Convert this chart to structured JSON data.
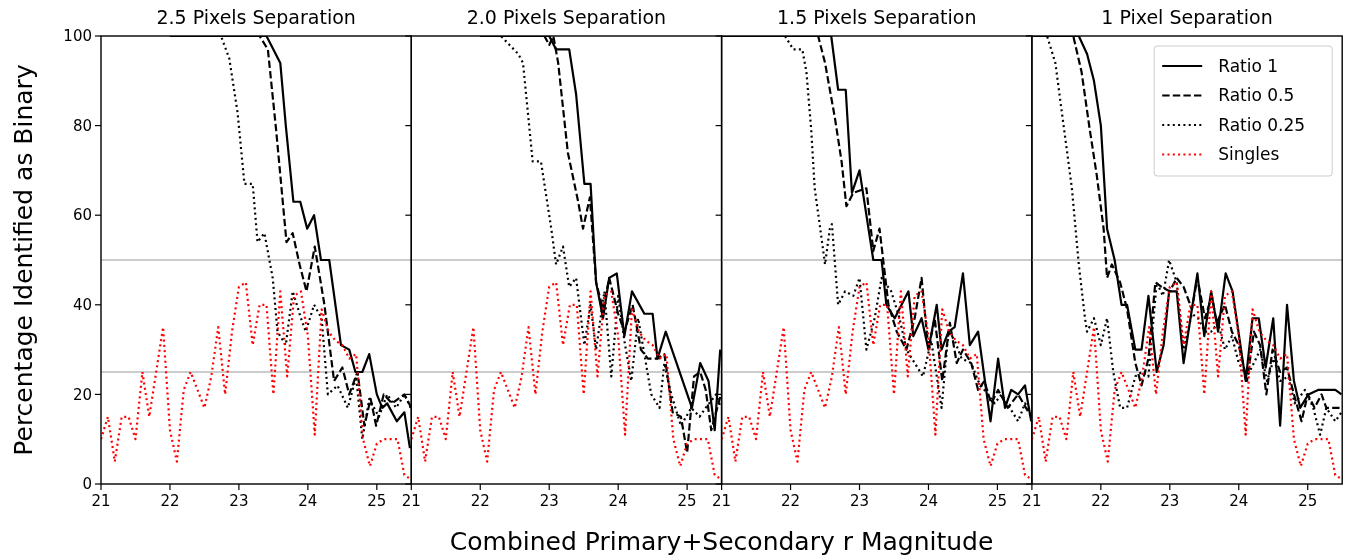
{
  "chart_data": [
    {
      "type": "line",
      "title": "2.5 Pixels Separation",
      "xlabel": "Combined Primary+Secondary r Magnitude",
      "ylabel": "Percentage Identified as Binary",
      "xlim": [
        21,
        25.5
      ],
      "xticks": [
        21,
        22,
        23,
        24,
        25
      ],
      "ylim": [
        0,
        100
      ],
      "yticks": [
        0,
        20,
        40,
        60,
        80,
        100
      ],
      "ref_lines": [
        {
          "axis": "y",
          "value": 50,
          "color": "#cccccc"
        },
        {
          "axis": "y",
          "value": 25,
          "color": "#cccccc"
        }
      ],
      "series": [
        {
          "color": "#000000",
          "line_style": "solid",
          "x": [
            22,
            23.4,
            23.6,
            23.68,
            23.79,
            23.89,
            23.99,
            24.09,
            24.19,
            24.31,
            24.48,
            24.6,
            24.69,
            24.79,
            24.89,
            25.0,
            25.08,
            25.15,
            25.29,
            25.4,
            25.48
          ],
          "values": [
            100,
            100,
            94,
            80,
            63,
            63,
            57,
            60,
            50,
            50,
            31,
            30,
            25,
            25,
            29,
            20,
            17,
            18,
            14,
            16,
            8
          ]
        },
        {
          "color": "#000000",
          "line_style": "dashed",
          "x": [
            22,
            23.3,
            23.42,
            23.54,
            23.69,
            23.78,
            23.88,
            23.98,
            24.1,
            24.24,
            24.38,
            24.5,
            24.6,
            24.72,
            24.82,
            24.91,
            24.99,
            25.1,
            25.22,
            25.4,
            25.5
          ],
          "values": [
            100,
            100,
            97,
            79,
            54,
            56,
            49,
            43,
            53,
            40,
            23,
            26,
            20,
            25,
            13,
            19,
            13,
            20,
            18,
            20,
            17
          ]
        },
        {
          "color": "#000000",
          "line_style": "dotted",
          "x": [
            22,
            22.74,
            22.86,
            22.98,
            23.08,
            23.2,
            23.27,
            23.37,
            23.49,
            23.56,
            23.68,
            23.78,
            23.9,
            23.97,
            24.09,
            24.2,
            24.29,
            24.43,
            24.58,
            24.7,
            24.79,
            24.89,
            25.03,
            25.15,
            25.28,
            25.4,
            25.49
          ],
          "values": [
            100,
            100,
            95,
            83,
            67,
            67,
            54,
            56,
            46,
            34,
            31,
            43,
            37,
            34,
            40,
            37,
            20,
            22,
            17,
            24,
            10,
            19,
            15,
            20,
            17,
            20,
            17
          ]
        },
        {
          "color": "#ff0000",
          "line_style": "dotted",
          "x": [
            21,
            21.1,
            21.2,
            21.3,
            21.4,
            21.5,
            21.6,
            21.7,
            21.8,
            21.9,
            22,
            22.1,
            22.2,
            22.3,
            22.4,
            22.5,
            22.6,
            22.7,
            22.8,
            22.9,
            23,
            23.1,
            23.2,
            23.3,
            23.4,
            23.5,
            23.6,
            23.7,
            23.8,
            23.9,
            24,
            24.1,
            24.2,
            24.3,
            24.4,
            24.5,
            24.6,
            24.7,
            24.8,
            24.9,
            25,
            25.1,
            25.2,
            25.3,
            25.4,
            25.5
          ],
          "values": [
            10,
            15,
            5,
            15,
            15,
            10,
            25,
            15,
            25,
            35,
            12,
            5,
            21,
            25,
            21,
            17,
            24,
            35,
            20,
            34,
            44,
            45,
            31,
            40,
            40,
            20,
            43,
            24,
            42,
            43,
            33,
            11,
            39,
            34,
            32,
            31,
            28,
            29,
            10,
            4,
            9,
            10,
            10,
            10,
            2,
            1
          ]
        }
      ]
    },
    {
      "type": "line",
      "title": "2.0 Pixels Separation",
      "xlim": [
        21,
        25.5
      ],
      "xticks": [
        21,
        22,
        23,
        24,
        25
      ],
      "ylim": [
        0,
        100
      ],
      "yticks": [
        0,
        20,
        40,
        60,
        80,
        100
      ],
      "tick_labels": "x",
      "ref_lines": [
        {
          "axis": "y",
          "value": 50,
          "color": "#cccccc"
        },
        {
          "axis": "y",
          "value": 25,
          "color": "#cccccc"
        }
      ],
      "series": [
        {
          "color": "#000000",
          "line_style": "solid",
          "x": [
            22,
            23.0,
            23.1,
            23.29,
            23.39,
            23.51,
            23.6,
            23.68,
            23.78,
            23.87,
            23.98,
            24.09,
            24.2,
            24.38,
            24.5,
            24.57,
            24.69,
            25.07,
            25.19,
            25.31,
            25.4,
            25.48
          ],
          "values": [
            100,
            100,
            97,
            97,
            87,
            67,
            67,
            45,
            37,
            46,
            47,
            33,
            43,
            38,
            38,
            28,
            34,
            17,
            27,
            23,
            12,
            30
          ]
        },
        {
          "color": "#000000",
          "line_style": "dashed",
          "x": [
            22,
            22.93,
            23.0,
            23.06,
            23.13,
            23.27,
            23.42,
            23.49,
            23.59,
            23.68,
            23.78,
            23.87,
            24.0,
            24.09,
            24.21,
            24.33,
            24.43,
            24.57,
            24.67,
            24.79,
            24.91,
            25.0,
            25.1,
            25.19,
            25.27,
            25.35,
            25.49
          ],
          "values": [
            100,
            100,
            98,
            100,
            94,
            74,
            63,
            57,
            64,
            45,
            39,
            46,
            38,
            34,
            40,
            30,
            28,
            28,
            29,
            16,
            15,
            7,
            24,
            25,
            21,
            12,
            20
          ]
        },
        {
          "color": "#000000",
          "line_style": "dotted",
          "x": [
            22,
            22.3,
            22.55,
            22.62,
            22.76,
            22.88,
            23.03,
            23.1,
            23.2,
            23.29,
            23.39,
            23.51,
            23.6,
            23.68,
            23.8,
            23.9,
            24.0,
            24.09,
            24.19,
            24.29,
            24.48,
            24.6,
            24.67,
            24.77,
            24.91,
            25.06,
            25.18,
            25.27,
            25.42,
            25.49
          ],
          "values": [
            100,
            100,
            96,
            94,
            72,
            72,
            57,
            49,
            53,
            44,
            46,
            31,
            40,
            30,
            43,
            24,
            42,
            32,
            23,
            37,
            20,
            17,
            27,
            20,
            13,
            17,
            15,
            17,
            20,
            17
          ]
        },
        {
          "color": "#ff0000",
          "line_style": "dotted",
          "x": [
            21,
            21.1,
            21.2,
            21.3,
            21.4,
            21.5,
            21.6,
            21.7,
            21.8,
            21.9,
            22,
            22.1,
            22.2,
            22.3,
            22.4,
            22.5,
            22.6,
            22.7,
            22.8,
            22.9,
            23,
            23.1,
            23.2,
            23.3,
            23.4,
            23.5,
            23.6,
            23.7,
            23.8,
            23.9,
            24,
            24.1,
            24.2,
            24.3,
            24.4,
            24.5,
            24.6,
            24.7,
            24.8,
            24.9,
            25,
            25.1,
            25.2,
            25.3,
            25.4,
            25.5
          ],
          "values": [
            10,
            15,
            5,
            15,
            15,
            10,
            25,
            15,
            25,
            35,
            12,
            5,
            21,
            25,
            21,
            17,
            24,
            35,
            20,
            34,
            44,
            45,
            31,
            40,
            40,
            20,
            43,
            24,
            42,
            43,
            33,
            11,
            39,
            34,
            32,
            31,
            28,
            29,
            10,
            4,
            9,
            10,
            10,
            10,
            2,
            1
          ]
        }
      ]
    },
    {
      "type": "line",
      "title": "1.5 Pixels Separation",
      "xlim": [
        21,
        25.5
      ],
      "xticks": [
        21,
        22,
        23,
        24,
        25
      ],
      "ylim": [
        0,
        100
      ],
      "yticks": [
        0,
        20,
        40,
        60,
        80,
        100
      ],
      "tick_labels": "x",
      "ref_lines": [
        {
          "axis": "y",
          "value": 50,
          "color": "#cccccc"
        },
        {
          "axis": "y",
          "value": 25,
          "color": "#cccccc"
        }
      ],
      "series": [
        {
          "color": "#000000",
          "line_style": "solid",
          "x": [
            21,
            22.59,
            22.69,
            22.8,
            22.89,
            23.0,
            23.2,
            23.32,
            23.39,
            23.51,
            23.71,
            23.78,
            23.9,
            24.0,
            24.12,
            24.19,
            24.29,
            24.38,
            24.5,
            24.6,
            24.72,
            24.81,
            24.9,
            25.01,
            25.11,
            25.2,
            25.3,
            25.4,
            25.49
          ],
          "values": [
            100,
            100,
            88,
            88,
            65,
            70,
            50,
            50,
            40,
            37,
            43,
            33,
            37,
            30,
            40,
            30,
            34,
            35,
            47,
            31,
            34,
            24,
            14,
            28,
            17,
            21,
            20,
            22,
            14
          ]
        },
        {
          "color": "#000000",
          "line_style": "dashed",
          "x": [
            21,
            22.4,
            22.5,
            22.64,
            22.74,
            22.81,
            22.91,
            23.1,
            23.2,
            23.29,
            23.42,
            23.54,
            23.68,
            23.8,
            23.9,
            24.0,
            24.09,
            24.2,
            24.31,
            24.41,
            24.5,
            24.62,
            24.72,
            24.81,
            24.91,
            25.01,
            25.15,
            25.3,
            25.49
          ],
          "values": [
            100,
            100,
            94,
            82,
            72,
            62,
            65,
            66,
            52,
            57,
            40,
            34,
            30,
            37,
            46,
            30,
            37,
            23,
            36,
            27,
            30,
            27,
            21,
            23,
            18,
            21,
            17,
            20,
            15
          ]
        },
        {
          "color": "#000000",
          "line_style": "dotted",
          "x": [
            21,
            21.92,
            22.04,
            22.17,
            22.23,
            22.3,
            22.35,
            22.43,
            22.5,
            22.57,
            22.6,
            22.69,
            22.79,
            22.91,
            23.0,
            23.1,
            23.22,
            23.32,
            23.46,
            23.58,
            23.68,
            23.8,
            23.92,
            24.04,
            24.19,
            24.29,
            24.38,
            24.48,
            24.62,
            24.72,
            24.81,
            24.96,
            25.06,
            25.18,
            25.3,
            25.4,
            25.49
          ],
          "values": [
            100,
            100,
            97,
            97,
            92,
            79,
            66,
            57,
            49,
            57,
            58,
            40,
            43,
            42,
            46,
            30,
            37,
            46,
            43,
            37,
            30,
            27,
            24,
            32,
            17,
            34,
            32,
            28,
            27,
            23,
            21,
            18,
            20,
            17,
            14,
            18,
            16
          ]
        },
        {
          "color": "#ff0000",
          "line_style": "dotted",
          "x": [
            21,
            21.1,
            21.2,
            21.3,
            21.4,
            21.5,
            21.6,
            21.7,
            21.8,
            21.9,
            22,
            22.1,
            22.2,
            22.3,
            22.4,
            22.5,
            22.6,
            22.7,
            22.8,
            22.9,
            23,
            23.1,
            23.2,
            23.3,
            23.4,
            23.5,
            23.6,
            23.7,
            23.8,
            23.9,
            24,
            24.1,
            24.2,
            24.3,
            24.4,
            24.5,
            24.6,
            24.7,
            24.8,
            24.9,
            25,
            25.1,
            25.2,
            25.3,
            25.4,
            25.5
          ],
          "values": [
            10,
            15,
            5,
            15,
            15,
            10,
            25,
            15,
            25,
            35,
            12,
            5,
            21,
            25,
            21,
            17,
            24,
            35,
            20,
            34,
            44,
            45,
            31,
            40,
            40,
            20,
            43,
            24,
            42,
            43,
            33,
            11,
            39,
            34,
            32,
            31,
            28,
            29,
            10,
            4,
            9,
            10,
            10,
            10,
            2,
            1
          ]
        }
      ]
    },
    {
      "type": "line",
      "title": "1 Pixel Separation",
      "xlim": [
        21,
        25.5
      ],
      "xticks": [
        21,
        22,
        23,
        24,
        25
      ],
      "ylim": [
        0,
        100
      ],
      "yticks": [
        0,
        20,
        40,
        60,
        80,
        100
      ],
      "tick_labels": "x",
      "legend": "top right",
      "ref_lines": [
        {
          "axis": "y",
          "value": 50,
          "color": "#cccccc"
        },
        {
          "axis": "y",
          "value": 25,
          "color": "#cccccc"
        }
      ],
      "series": [
        {
          "name": "Ratio 1",
          "color": "#000000",
          "line_style": "solid",
          "x": [
            21,
            21.68,
            21.8,
            21.9,
            22.0,
            22.09,
            22.2,
            22.3,
            22.38,
            22.5,
            22.59,
            22.69,
            22.81,
            22.91,
            22.99,
            23.1,
            23.2,
            23.3,
            23.4,
            23.5,
            23.6,
            23.7,
            23.81,
            23.91,
            24.1,
            24.2,
            24.29,
            24.39,
            24.5,
            24.6,
            24.7,
            24.8,
            24.89,
            25.01,
            25.15,
            25.4,
            25.49
          ],
          "values": [
            100,
            100,
            96,
            90,
            80,
            57,
            50,
            40,
            40,
            30,
            30,
            42,
            25,
            31,
            43,
            43,
            27,
            37,
            47,
            33,
            43,
            34,
            47,
            43,
            23,
            37,
            37,
            26,
            37,
            13,
            40,
            23,
            17,
            20,
            21,
            21,
            20
          ]
        },
        {
          "name": "Ratio 0.5",
          "color": "#000000",
          "line_style": "dashed",
          "x": [
            21,
            21.6,
            21.72,
            21.84,
            21.94,
            22.04,
            22.09,
            22.16,
            22.28,
            22.38,
            22.5,
            22.59,
            22.69,
            22.79,
            22.88,
            23.0,
            23.1,
            23.2,
            23.32,
            23.4,
            23.51,
            23.61,
            23.68,
            23.8,
            23.9,
            24.0,
            24.12,
            24.22,
            24.31,
            24.4,
            24.49,
            24.6,
            24.7,
            24.8,
            24.91,
            25.0,
            25.1,
            25.2,
            25.27,
            25.4,
            25.49
          ],
          "values": [
            100,
            100,
            92,
            79,
            69,
            57,
            46,
            49,
            45,
            39,
            27,
            22,
            28,
            45,
            44,
            43,
            46,
            44,
            39,
            46,
            37,
            42,
            36,
            40,
            34,
            31,
            23,
            34,
            31,
            20,
            30,
            25,
            26,
            20,
            14,
            20,
            17,
            20,
            17,
            17,
            17
          ]
        },
        {
          "name": "Ratio 0.25",
          "color": "#000000",
          "line_style": "dotted",
          "x": [
            21,
            21.22,
            21.34,
            21.46,
            21.58,
            21.68,
            21.77,
            21.8,
            21.9,
            22.0,
            22.09,
            22.18,
            22.28,
            22.38,
            22.5,
            22.59,
            22.69,
            22.81,
            22.9,
            22.99,
            23.1,
            23.2,
            23.32,
            23.41,
            23.51,
            23.6,
            23.7,
            23.8,
            23.9,
            24.0,
            24.12,
            24.22,
            24.31,
            24.41,
            24.51,
            24.6,
            24.72,
            24.81,
            24.96,
            25.08,
            25.18,
            25.27,
            25.4,
            25.49
          ],
          "values": [
            100,
            100,
            94,
            80,
            66,
            49,
            37,
            34,
            37,
            31,
            37,
            25,
            17,
            17,
            24,
            25,
            24,
            45,
            42,
            50,
            45,
            30,
            38,
            37,
            34,
            34,
            36,
            30,
            33,
            27,
            24,
            27,
            30,
            23,
            28,
            23,
            24,
            18,
            21,
            17,
            11,
            17,
            14,
            16
          ]
        },
        {
          "name": "Singles",
          "color": "#ff0000",
          "line_style": "dotted",
          "x": [
            21,
            21.1,
            21.2,
            21.3,
            21.4,
            21.5,
            21.6,
            21.7,
            21.8,
            21.9,
            22,
            22.1,
            22.2,
            22.3,
            22.4,
            22.5,
            22.6,
            22.7,
            22.8,
            22.9,
            23,
            23.1,
            23.2,
            23.3,
            23.4,
            23.5,
            23.6,
            23.7,
            23.8,
            23.9,
            24,
            24.1,
            24.2,
            24.3,
            24.4,
            24.5,
            24.6,
            24.7,
            24.8,
            24.9,
            25,
            25.1,
            25.2,
            25.3,
            25.4,
            25.5
          ],
          "values": [
            10,
            15,
            5,
            15,
            15,
            10,
            25,
            15,
            25,
            35,
            12,
            5,
            21,
            25,
            21,
            17,
            24,
            35,
            20,
            34,
            44,
            45,
            31,
            40,
            40,
            20,
            43,
            24,
            42,
            43,
            33,
            11,
            39,
            34,
            32,
            31,
            28,
            29,
            10,
            4,
            9,
            10,
            10,
            10,
            2,
            1
          ]
        }
      ]
    }
  ]
}
